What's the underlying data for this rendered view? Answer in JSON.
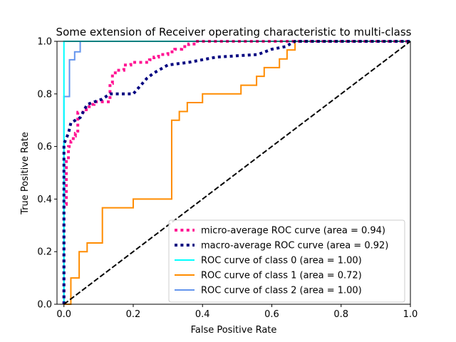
{
  "chart_data": {
    "type": "line",
    "title": "Some extension of Receiver operating characteristic to multi-class",
    "xlabel": "False Positive Rate",
    "ylabel": "True Positive Rate",
    "xlim": [
      -0.02,
      1.0
    ],
    "ylim": [
      0.0,
      1.0
    ],
    "xticks": [
      "0.0",
      "0.2",
      "0.4",
      "0.6",
      "0.8",
      "1.0"
    ],
    "yticks": [
      "0.0",
      "0.2",
      "0.4",
      "0.6",
      "0.8",
      "1.0"
    ],
    "grid": false,
    "legend_position": "lower-right",
    "series": [
      {
        "name": "micro-average ROC curve (area = 0.94)",
        "color": "#ff1493",
        "line_style": "dotted",
        "x": [
          0,
          0,
          0.007,
          0.007,
          0.013,
          0.013,
          0.02,
          0.02,
          0.027,
          0.027,
          0.033,
          0.033,
          0.04,
          0.04,
          0.06,
          0.06,
          0.073,
          0.073,
          0.087,
          0.087,
          0.133,
          0.133,
          0.14,
          0.14,
          0.153,
          0.153,
          0.173,
          0.173,
          0.193,
          0.193,
          0.247,
          0.247,
          0.26,
          0.26,
          0.273,
          0.273,
          0.3,
          0.3,
          0.32,
          0.32,
          0.34,
          0.34,
          0.36,
          0.36,
          0.38,
          0.38,
          1.0
        ],
        "y": [
          0,
          0.38,
          0.38,
          0.55,
          0.55,
          0.6,
          0.6,
          0.62,
          0.62,
          0.64,
          0.64,
          0.65,
          0.65,
          0.73,
          0.73,
          0.74,
          0.74,
          0.76,
          0.76,
          0.77,
          0.77,
          0.84,
          0.84,
          0.88,
          0.88,
          0.89,
          0.89,
          0.91,
          0.91,
          0.92,
          0.92,
          0.93,
          0.93,
          0.94,
          0.94,
          0.95,
          0.95,
          0.96,
          0.96,
          0.97,
          0.97,
          0.98,
          0.98,
          0.99,
          0.99,
          1.0,
          1.0
        ]
      },
      {
        "name": "macro-average ROC curve (area = 0.92)",
        "color": "#000080",
        "line_style": "dotted",
        "x": [
          0,
          0,
          0.013,
          0.02,
          0.047,
          0.067,
          0.11,
          0.133,
          0.2,
          0.22,
          0.24,
          0.26,
          0.3,
          0.36,
          0.4,
          0.44,
          0.5,
          0.56,
          0.6,
          0.64,
          0.653,
          0.667,
          1.0
        ],
        "y": [
          0,
          0.61,
          0.65,
          0.69,
          0.71,
          0.76,
          0.78,
          0.8,
          0.8,
          0.83,
          0.86,
          0.88,
          0.91,
          0.92,
          0.93,
          0.94,
          0.945,
          0.95,
          0.97,
          0.98,
          0.99,
          1.0,
          1.0
        ]
      },
      {
        "name": "ROC curve of class 0 (area = 1.00)",
        "color": "#00ffff",
        "line_style": "solid",
        "x": [
          0,
          0,
          1.0
        ],
        "y": [
          0,
          1.0,
          1.0
        ]
      },
      {
        "name": "ROC curve of class 1 (area = 0.72)",
        "color": "#ff8c00",
        "line_style": "solid",
        "x": [
          0,
          0.02,
          0.02,
          0.044,
          0.044,
          0.067,
          0.067,
          0.111,
          0.111,
          0.2,
          0.2,
          0.311,
          0.311,
          0.333,
          0.333,
          0.356,
          0.356,
          0.4,
          0.4,
          0.511,
          0.511,
          0.556,
          0.556,
          0.578,
          0.578,
          0.622,
          0.622,
          0.644,
          0.644,
          0.667,
          0.667,
          1.0,
          1.0
        ],
        "y": [
          0,
          0,
          0.1,
          0.1,
          0.2,
          0.2,
          0.233,
          0.233,
          0.367,
          0.367,
          0.4,
          0.4,
          0.7,
          0.7,
          0.733,
          0.733,
          0.767,
          0.767,
          0.8,
          0.8,
          0.833,
          0.833,
          0.867,
          0.867,
          0.9,
          0.9,
          0.933,
          0.933,
          0.967,
          0.967,
          1.0,
          1.0,
          1.0
        ]
      },
      {
        "name": "ROC curve of class 2 (area = 1.00)",
        "color": "#6495ed",
        "line_style": "solid",
        "x": [
          0,
          0,
          0.016,
          0.016,
          0.031,
          0.031,
          0.047,
          0.047,
          1.0
        ],
        "y": [
          0,
          0.79,
          0.79,
          0.93,
          0.93,
          0.96,
          0.96,
          1.0,
          1.0
        ]
      },
      {
        "name": "",
        "color": "#000000",
        "line_style": "dashed",
        "x": [
          0,
          1
        ],
        "y": [
          0,
          1
        ]
      }
    ]
  }
}
